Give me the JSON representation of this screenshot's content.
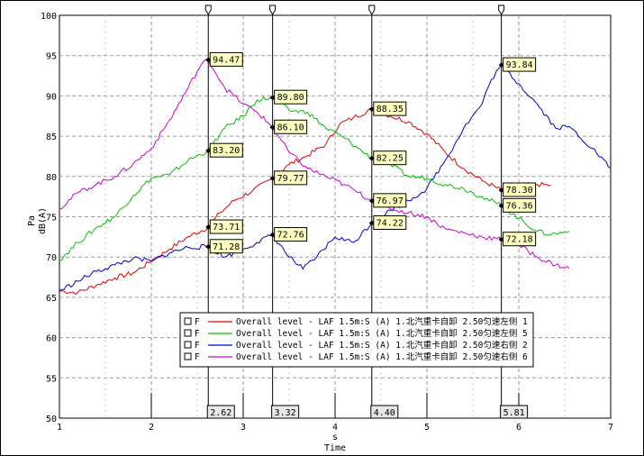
{
  "chart_data": {
    "type": "line",
    "xlabel_unit": "s",
    "xlabel": "Time",
    "ylabel_unit": "Pa",
    "ylabel": "dB(A)",
    "xlim": [
      1,
      7
    ],
    "ylim": [
      50,
      100
    ],
    "xticks": [
      "1",
      "2",
      "3",
      "4",
      "5",
      "6",
      "7"
    ],
    "yticks": [
      "50",
      "55",
      "60",
      "65",
      "70",
      "75",
      "80",
      "85",
      "90",
      "95",
      "100"
    ],
    "grid": true,
    "legend_position": "bottom-center",
    "cursors": [
      {
        "x": 2.62,
        "label": "2.62"
      },
      {
        "x": 3.32,
        "label": "3.32"
      },
      {
        "x": 4.4,
        "label": "4.40"
      },
      {
        "x": 5.81,
        "label": "5.81"
      }
    ],
    "series": [
      {
        "name": "Overall level - LAF 1.5m:S (A) 1.北汽重卡自卸 2.50匀速左侧 1",
        "legend_marker": "F",
        "color": "#e00000",
        "x": [
          1.0,
          1.2,
          1.4,
          1.6,
          1.8,
          2.0,
          2.2,
          2.4,
          2.62,
          2.75,
          2.9,
          3.1,
          3.32,
          3.5,
          3.7,
          3.9,
          4.05,
          4.2,
          4.4,
          4.6,
          4.8,
          5.0,
          5.2,
          5.4,
          5.6,
          5.81,
          6.0,
          6.2,
          6.35
        ],
        "values": [
          65.8,
          65.6,
          66.5,
          67.4,
          68.0,
          69.5,
          71.0,
          72.5,
          73.71,
          75.5,
          77.0,
          78.2,
          79.77,
          81.5,
          82.6,
          84.0,
          86.5,
          87.3,
          88.35,
          87.5,
          86.8,
          85.3,
          83.0,
          81.0,
          79.5,
          78.3,
          78.9,
          79.0,
          78.9
        ]
      },
      {
        "name": "Overall level - LAF 1.5m:S (A) 1.北汽重卡自卸 2.50匀速左侧 5",
        "legend_marker": "F",
        "color": "#00c000",
        "x": [
          1.0,
          1.2,
          1.4,
          1.6,
          1.8,
          2.0,
          2.2,
          2.4,
          2.62,
          2.8,
          3.0,
          3.15,
          3.32,
          3.5,
          3.7,
          3.9,
          4.1,
          4.25,
          4.4,
          4.6,
          4.8,
          5.0,
          5.2,
          5.4,
          5.6,
          5.81,
          6.0,
          6.2,
          6.35,
          6.55
        ],
        "values": [
          69.6,
          71.8,
          73.6,
          75.0,
          77.6,
          79.8,
          80.2,
          82.0,
          83.2,
          86.0,
          87.5,
          89.5,
          89.8,
          88.2,
          88.0,
          86.0,
          84.8,
          83.5,
          82.25,
          81.5,
          80.0,
          79.8,
          79.0,
          78.5,
          77.5,
          76.36,
          74.8,
          73.2,
          72.8,
          73.2
        ]
      },
      {
        "name": "Overall level - LAF 1.5m:S (A) 1.北汽重卡自卸 2.50匀速右侧 2",
        "legend_marker": "F",
        "color": "#0000c8",
        "x": [
          1.0,
          1.2,
          1.4,
          1.6,
          1.8,
          2.0,
          2.2,
          2.4,
          2.62,
          2.8,
          3.0,
          3.15,
          3.32,
          3.5,
          3.65,
          3.8,
          4.0,
          4.2,
          4.4,
          4.6,
          4.8,
          5.0,
          5.2,
          5.4,
          5.6,
          5.7,
          5.81,
          6.0,
          6.2,
          6.4,
          6.55,
          6.8,
          7.0
        ],
        "values": [
          65.8,
          67.0,
          68.2,
          69.0,
          69.8,
          69.5,
          70.5,
          71.2,
          71.28,
          70.0,
          71.0,
          71.8,
          72.76,
          70.0,
          68.5,
          70.0,
          72.5,
          71.8,
          74.22,
          75.8,
          77.0,
          78.5,
          82.0,
          86.0,
          89.0,
          92.0,
          93.84,
          91.5,
          89.0,
          86.0,
          86.2,
          83.5,
          81.0
        ]
      },
      {
        "name": "Overall level - LAF 1.5m:S (A) 1.北汽重卡自卸 2.50匀速右侧 6",
        "legend_marker": "F",
        "color": "#d000d0",
        "x": [
          1.0,
          1.2,
          1.4,
          1.6,
          1.8,
          2.0,
          2.2,
          2.4,
          2.55,
          2.62,
          2.8,
          3.0,
          3.15,
          3.32,
          3.5,
          3.7,
          3.9,
          4.1,
          4.25,
          4.4,
          4.6,
          4.8,
          5.0,
          5.2,
          5.4,
          5.6,
          5.81,
          6.0,
          6.2,
          6.4,
          6.55
        ],
        "values": [
          76.0,
          78.0,
          79.0,
          80.0,
          81.5,
          83.5,
          87.0,
          91.0,
          94.0,
          94.47,
          91.0,
          89.0,
          88.0,
          86.1,
          83.0,
          81.0,
          80.0,
          79.0,
          78.0,
          76.97,
          76.0,
          75.5,
          75.0,
          73.5,
          73.0,
          72.5,
          72.18,
          71.5,
          70.0,
          69.0,
          68.6
        ]
      }
    ],
    "data_labels": [
      {
        "x": 2.62,
        "y": 94.47,
        "text": "94.47"
      },
      {
        "x": 2.62,
        "y": 83.2,
        "text": "83.20"
      },
      {
        "x": 2.62,
        "y": 73.71,
        "text": "73.71"
      },
      {
        "x": 2.62,
        "y": 71.28,
        "text": "71.28"
      },
      {
        "x": 3.32,
        "y": 89.8,
        "text": "89.80"
      },
      {
        "x": 3.32,
        "y": 86.1,
        "text": "86.10"
      },
      {
        "x": 3.32,
        "y": 79.77,
        "text": "79.77"
      },
      {
        "x": 3.32,
        "y": 72.76,
        "text": "72.76"
      },
      {
        "x": 4.4,
        "y": 88.35,
        "text": "88.35"
      },
      {
        "x": 4.4,
        "y": 82.25,
        "text": "82.25"
      },
      {
        "x": 4.4,
        "y": 76.97,
        "text": "76.97"
      },
      {
        "x": 4.4,
        "y": 74.22,
        "text": "74.22"
      },
      {
        "x": 5.81,
        "y": 93.84,
        "text": "93.84"
      },
      {
        "x": 5.81,
        "y": 78.3,
        "text": "78.30"
      },
      {
        "x": 5.81,
        "y": 76.36,
        "text": "76.36"
      },
      {
        "x": 5.81,
        "y": 72.18,
        "text": "72.18"
      }
    ]
  }
}
